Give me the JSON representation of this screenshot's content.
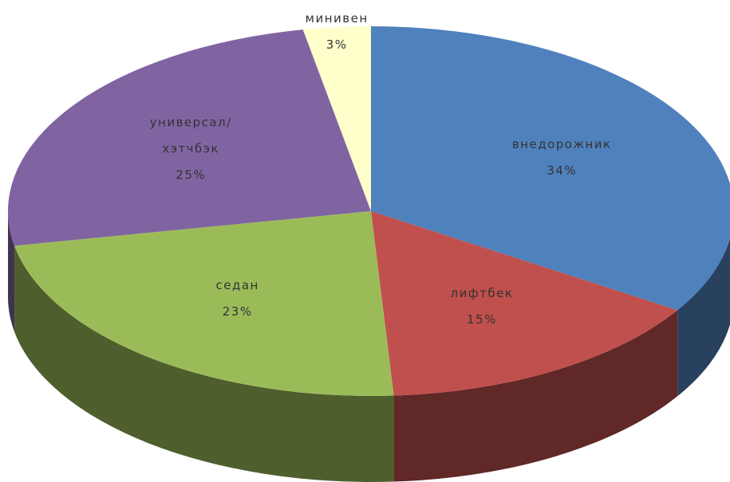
{
  "chart_data": {
    "type": "pie3d",
    "categories": [
      "внедорожник",
      "лифтбек",
      "седан",
      "универсал/\nхэтчбэк",
      "минивен"
    ],
    "values": [
      34,
      15,
      23,
      25,
      3
    ],
    "value_labels": [
      "34%",
      "15%",
      "23%",
      "25%",
      "3%"
    ],
    "colors": [
      "#4f81bd",
      "#c0504d",
      "#9bbb59",
      "#8064a2",
      "#ffffcc"
    ]
  }
}
